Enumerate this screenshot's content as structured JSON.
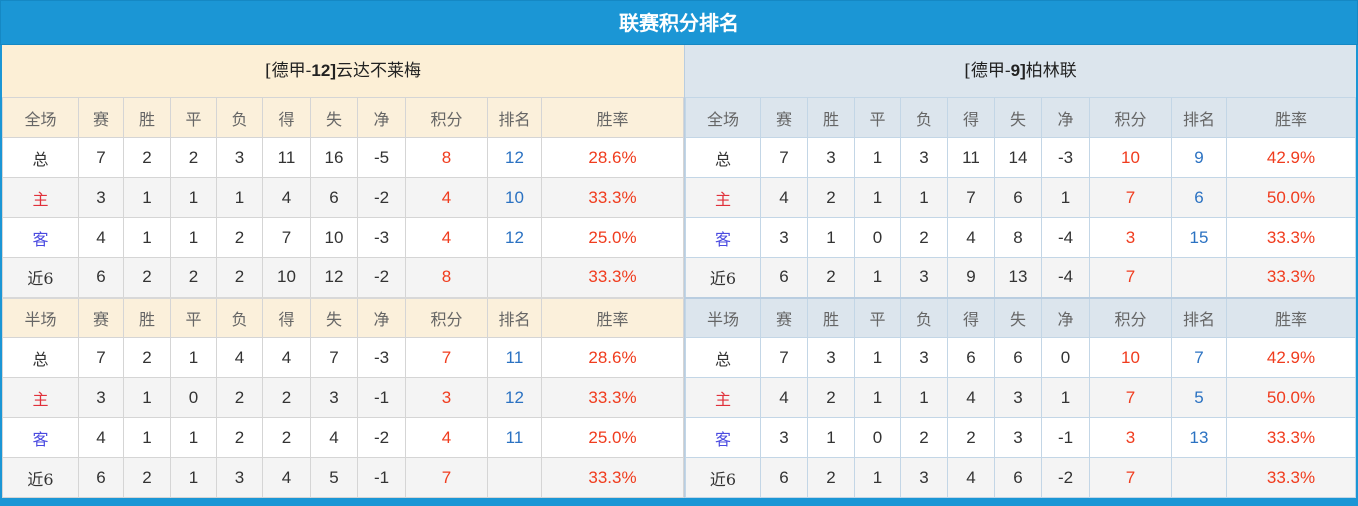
{
  "title": "联赛积分排名",
  "columns_full": [
    "全场",
    "赛",
    "胜",
    "平",
    "负",
    "得",
    "失",
    "净",
    "积分",
    "排名",
    "胜率"
  ],
  "columns_half": [
    "半场",
    "赛",
    "胜",
    "平",
    "负",
    "得",
    "失",
    "净",
    "积分",
    "排名",
    "胜率"
  ],
  "colors": {
    "header_bar": "#1b96d5",
    "home_label": "#e0303a",
    "away_label": "#4a4ae0",
    "points": "#f03c1e",
    "rank": "#2b72c2",
    "rate": "#f03c1e"
  },
  "teams": [
    {
      "league_prefix": "[德甲-",
      "league_rank": "12]",
      "name": "云达不莱梅",
      "full": [
        [
          "总",
          "7",
          "2",
          "2",
          "3",
          "11",
          "16",
          "-5",
          "8",
          "12",
          "28.6%"
        ],
        [
          "主",
          "3",
          "1",
          "1",
          "1",
          "4",
          "6",
          "-2",
          "4",
          "10",
          "33.3%"
        ],
        [
          "客",
          "4",
          "1",
          "1",
          "2",
          "7",
          "10",
          "-3",
          "4",
          "12",
          "25.0%"
        ],
        [
          "近6",
          "6",
          "2",
          "2",
          "2",
          "10",
          "12",
          "-2",
          "8",
          "",
          "33.3%"
        ]
      ],
      "half": [
        [
          "总",
          "7",
          "2",
          "1",
          "4",
          "4",
          "7",
          "-3",
          "7",
          "11",
          "28.6%"
        ],
        [
          "主",
          "3",
          "1",
          "0",
          "2",
          "2",
          "3",
          "-1",
          "3",
          "12",
          "33.3%"
        ],
        [
          "客",
          "4",
          "1",
          "1",
          "2",
          "2",
          "4",
          "-2",
          "4",
          "11",
          "25.0%"
        ],
        [
          "近6",
          "6",
          "2",
          "1",
          "3",
          "4",
          "5",
          "-1",
          "7",
          "",
          "33.3%"
        ]
      ]
    },
    {
      "league_prefix": "[德甲-",
      "league_rank": "9]",
      "name": "柏林联",
      "full": [
        [
          "总",
          "7",
          "3",
          "1",
          "3",
          "11",
          "14",
          "-3",
          "10",
          "9",
          "42.9%"
        ],
        [
          "主",
          "4",
          "2",
          "1",
          "1",
          "7",
          "6",
          "1",
          "7",
          "6",
          "50.0%"
        ],
        [
          "客",
          "3",
          "1",
          "0",
          "2",
          "4",
          "8",
          "-4",
          "3",
          "15",
          "33.3%"
        ],
        [
          "近6",
          "6",
          "2",
          "1",
          "3",
          "9",
          "13",
          "-4",
          "7",
          "",
          "33.3%"
        ]
      ],
      "half": [
        [
          "总",
          "7",
          "3",
          "1",
          "3",
          "6",
          "6",
          "0",
          "10",
          "7",
          "42.9%"
        ],
        [
          "主",
          "4",
          "2",
          "1",
          "1",
          "4",
          "3",
          "1",
          "7",
          "5",
          "50.0%"
        ],
        [
          "客",
          "3",
          "1",
          "0",
          "2",
          "2",
          "3",
          "-1",
          "3",
          "13",
          "33.3%"
        ],
        [
          "近6",
          "6",
          "2",
          "1",
          "3",
          "4",
          "6",
          "-2",
          "7",
          "",
          "33.3%"
        ]
      ]
    }
  ]
}
